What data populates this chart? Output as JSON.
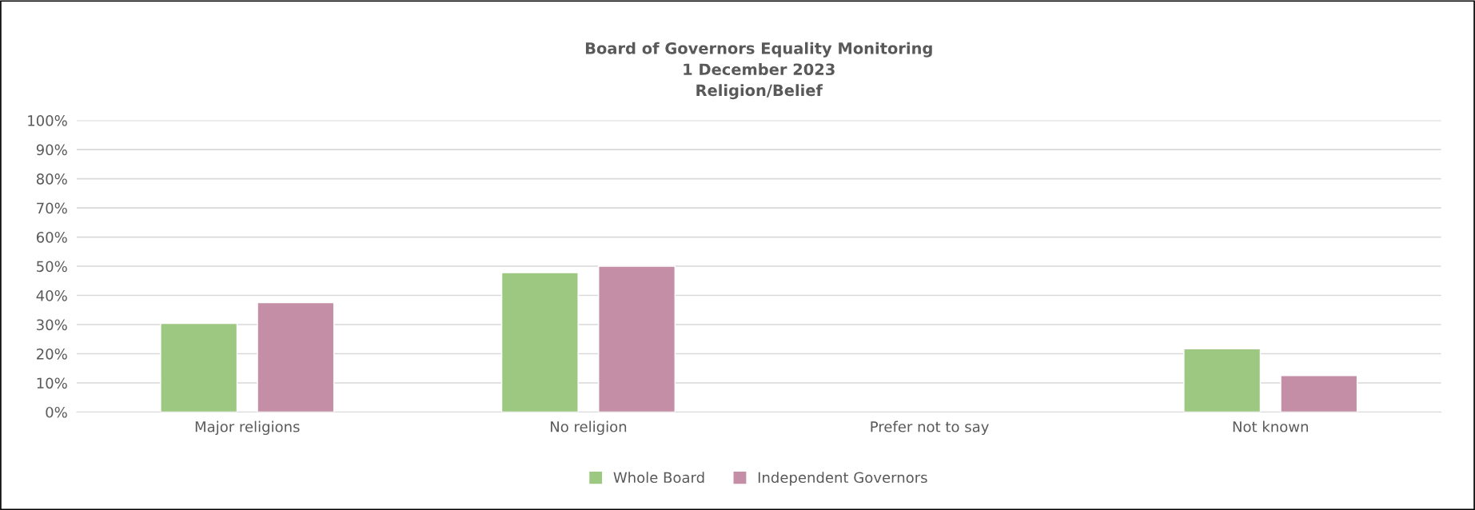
{
  "chart_data": {
    "type": "bar",
    "title": "Board of Governors Equality Monitoring\n1 December 2023\nReligion/Belief",
    "categories": [
      "Major religions",
      "No religion",
      "Prefer not to say",
      "Not known"
    ],
    "series": [
      {
        "name": "Whole Board",
        "color": "#9dc882",
        "values": [
          30.4,
          47.8,
          0,
          21.7
        ]
      },
      {
        "name": "Independent Governors",
        "color": "#c48fa6",
        "values": [
          37.5,
          50,
          0,
          12.5
        ]
      }
    ],
    "ylim": [
      0,
      100
    ],
    "yticks": [
      {
        "value": 0,
        "label": "0%"
      },
      {
        "value": 10,
        "label": "10%"
      },
      {
        "value": 20,
        "label": "20%"
      },
      {
        "value": 30,
        "label": "30%"
      },
      {
        "value": 40,
        "label": "40%"
      },
      {
        "value": 50,
        "label": "50%"
      },
      {
        "value": 60,
        "label": "60%"
      },
      {
        "value": 70,
        "label": "70%"
      },
      {
        "value": 80,
        "label": "80%"
      },
      {
        "value": 90,
        "label": "90%"
      },
      {
        "value": 100,
        "label": "100%"
      }
    ],
    "grid": "y",
    "legend": "bottom"
  }
}
